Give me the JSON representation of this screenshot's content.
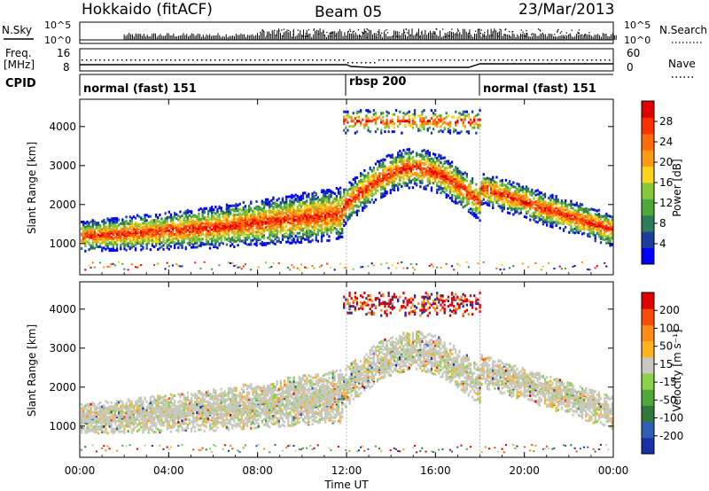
{
  "header": {
    "radar": "Hokkaido (fitACF)",
    "beam": "Beam 05",
    "date": "23/Mar/2013"
  },
  "panels": {
    "nsky": {
      "left_label": "N.Sky",
      "left_ticks": [
        "10^5",
        "10^0"
      ],
      "right_ticks": [
        "10^5",
        "10^0"
      ],
      "right_label": "N.Search"
    },
    "freq": {
      "left_label_1": "Freq.",
      "left_label_2": "[MHz]",
      "left_ticks": [
        "16",
        "8"
      ],
      "right_ticks": [
        "60",
        "0"
      ],
      "right_label": "Nave"
    },
    "cpid": {
      "label": "CPID",
      "segments": [
        {
          "text": "normal (fast) 151"
        },
        {
          "text": "rbsp 200"
        },
        {
          "text": "normal (fast) 151"
        }
      ]
    }
  },
  "chart_data": [
    {
      "type": "heatmap",
      "name": "power",
      "ylabel": "Slant Range [km]",
      "yticks": [
        "4000",
        "3000",
        "2000",
        "1000"
      ],
      "colorbar_label": "Power [dB]",
      "colorbar_ticks": [
        "28",
        "24",
        "20",
        "16",
        "12",
        "8",
        "4"
      ],
      "colors": [
        "#0000ff",
        "#1e3ca0",
        "#2e7d5a",
        "#4fa83a",
        "#86c83a",
        "#ffd21e",
        "#ff9a14",
        "#ff6a0a",
        "#ff3000",
        "#e00000"
      ]
    },
    {
      "type": "heatmap",
      "name": "velocity",
      "ylabel": "Slant Range [km]",
      "yticks": [
        "4000",
        "3000",
        "2000",
        "1000"
      ],
      "colorbar_label": "Velocity [m s⁻¹]",
      "colorbar_ticks": [
        "200",
        "100",
        "50",
        "15",
        "-15",
        "-50",
        "-100",
        "-200"
      ],
      "colors": [
        "#1a2ea8",
        "#2e5fb4",
        "#2f7a3a",
        "#4fa83a",
        "#8ad24a",
        "#c8c8c0",
        "#ffb41e",
        "#ff8a14",
        "#ff4a0a",
        "#e00000"
      ]
    }
  ],
  "xaxis": {
    "label": "Time UT",
    "ticks": [
      "00:00",
      "04:00",
      "08:00",
      "12:00",
      "16:00",
      "20:00",
      "00:00"
    ]
  }
}
